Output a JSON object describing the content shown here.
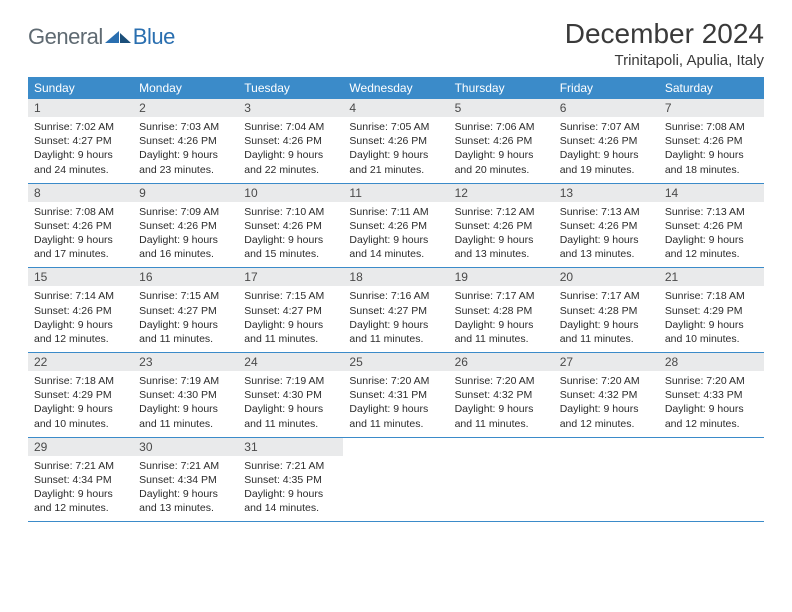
{
  "logo": {
    "general": "General",
    "blue": "Blue"
  },
  "title": "December 2024",
  "location": "Trinitapoli, Apulia, Italy",
  "colors": {
    "header_bg": "#3b8bc9",
    "header_text": "#ffffff",
    "daynum_bg": "#e9eaeb",
    "daynum_text": "#4a4a4a",
    "body_text": "#2b2b2b",
    "border": "#3b8bc9",
    "logo_gray": "#5f6a72",
    "logo_blue": "#2a6fb0",
    "title_color": "#3a3a3a"
  },
  "weekdays": [
    "Sunday",
    "Monday",
    "Tuesday",
    "Wednesday",
    "Thursday",
    "Friday",
    "Saturday"
  ],
  "weeks": [
    [
      {
        "num": "1",
        "sunrise": "Sunrise: 7:02 AM",
        "sunset": "Sunset: 4:27 PM",
        "daylight": "Daylight: 9 hours and 24 minutes."
      },
      {
        "num": "2",
        "sunrise": "Sunrise: 7:03 AM",
        "sunset": "Sunset: 4:26 PM",
        "daylight": "Daylight: 9 hours and 23 minutes."
      },
      {
        "num": "3",
        "sunrise": "Sunrise: 7:04 AM",
        "sunset": "Sunset: 4:26 PM",
        "daylight": "Daylight: 9 hours and 22 minutes."
      },
      {
        "num": "4",
        "sunrise": "Sunrise: 7:05 AM",
        "sunset": "Sunset: 4:26 PM",
        "daylight": "Daylight: 9 hours and 21 minutes."
      },
      {
        "num": "5",
        "sunrise": "Sunrise: 7:06 AM",
        "sunset": "Sunset: 4:26 PM",
        "daylight": "Daylight: 9 hours and 20 minutes."
      },
      {
        "num": "6",
        "sunrise": "Sunrise: 7:07 AM",
        "sunset": "Sunset: 4:26 PM",
        "daylight": "Daylight: 9 hours and 19 minutes."
      },
      {
        "num": "7",
        "sunrise": "Sunrise: 7:08 AM",
        "sunset": "Sunset: 4:26 PM",
        "daylight": "Daylight: 9 hours and 18 minutes."
      }
    ],
    [
      {
        "num": "8",
        "sunrise": "Sunrise: 7:08 AM",
        "sunset": "Sunset: 4:26 PM",
        "daylight": "Daylight: 9 hours and 17 minutes."
      },
      {
        "num": "9",
        "sunrise": "Sunrise: 7:09 AM",
        "sunset": "Sunset: 4:26 PM",
        "daylight": "Daylight: 9 hours and 16 minutes."
      },
      {
        "num": "10",
        "sunrise": "Sunrise: 7:10 AM",
        "sunset": "Sunset: 4:26 PM",
        "daylight": "Daylight: 9 hours and 15 minutes."
      },
      {
        "num": "11",
        "sunrise": "Sunrise: 7:11 AM",
        "sunset": "Sunset: 4:26 PM",
        "daylight": "Daylight: 9 hours and 14 minutes."
      },
      {
        "num": "12",
        "sunrise": "Sunrise: 7:12 AM",
        "sunset": "Sunset: 4:26 PM",
        "daylight": "Daylight: 9 hours and 13 minutes."
      },
      {
        "num": "13",
        "sunrise": "Sunrise: 7:13 AM",
        "sunset": "Sunset: 4:26 PM",
        "daylight": "Daylight: 9 hours and 13 minutes."
      },
      {
        "num": "14",
        "sunrise": "Sunrise: 7:13 AM",
        "sunset": "Sunset: 4:26 PM",
        "daylight": "Daylight: 9 hours and 12 minutes."
      }
    ],
    [
      {
        "num": "15",
        "sunrise": "Sunrise: 7:14 AM",
        "sunset": "Sunset: 4:26 PM",
        "daylight": "Daylight: 9 hours and 12 minutes."
      },
      {
        "num": "16",
        "sunrise": "Sunrise: 7:15 AM",
        "sunset": "Sunset: 4:27 PM",
        "daylight": "Daylight: 9 hours and 11 minutes."
      },
      {
        "num": "17",
        "sunrise": "Sunrise: 7:15 AM",
        "sunset": "Sunset: 4:27 PM",
        "daylight": "Daylight: 9 hours and 11 minutes."
      },
      {
        "num": "18",
        "sunrise": "Sunrise: 7:16 AM",
        "sunset": "Sunset: 4:27 PM",
        "daylight": "Daylight: 9 hours and 11 minutes."
      },
      {
        "num": "19",
        "sunrise": "Sunrise: 7:17 AM",
        "sunset": "Sunset: 4:28 PM",
        "daylight": "Daylight: 9 hours and 11 minutes."
      },
      {
        "num": "20",
        "sunrise": "Sunrise: 7:17 AM",
        "sunset": "Sunset: 4:28 PM",
        "daylight": "Daylight: 9 hours and 11 minutes."
      },
      {
        "num": "21",
        "sunrise": "Sunrise: 7:18 AM",
        "sunset": "Sunset: 4:29 PM",
        "daylight": "Daylight: 9 hours and 10 minutes."
      }
    ],
    [
      {
        "num": "22",
        "sunrise": "Sunrise: 7:18 AM",
        "sunset": "Sunset: 4:29 PM",
        "daylight": "Daylight: 9 hours and 10 minutes."
      },
      {
        "num": "23",
        "sunrise": "Sunrise: 7:19 AM",
        "sunset": "Sunset: 4:30 PM",
        "daylight": "Daylight: 9 hours and 11 minutes."
      },
      {
        "num": "24",
        "sunrise": "Sunrise: 7:19 AM",
        "sunset": "Sunset: 4:30 PM",
        "daylight": "Daylight: 9 hours and 11 minutes."
      },
      {
        "num": "25",
        "sunrise": "Sunrise: 7:20 AM",
        "sunset": "Sunset: 4:31 PM",
        "daylight": "Daylight: 9 hours and 11 minutes."
      },
      {
        "num": "26",
        "sunrise": "Sunrise: 7:20 AM",
        "sunset": "Sunset: 4:32 PM",
        "daylight": "Daylight: 9 hours and 11 minutes."
      },
      {
        "num": "27",
        "sunrise": "Sunrise: 7:20 AM",
        "sunset": "Sunset: 4:32 PM",
        "daylight": "Daylight: 9 hours and 12 minutes."
      },
      {
        "num": "28",
        "sunrise": "Sunrise: 7:20 AM",
        "sunset": "Sunset: 4:33 PM",
        "daylight": "Daylight: 9 hours and 12 minutes."
      }
    ],
    [
      {
        "num": "29",
        "sunrise": "Sunrise: 7:21 AM",
        "sunset": "Sunset: 4:34 PM",
        "daylight": "Daylight: 9 hours and 12 minutes."
      },
      {
        "num": "30",
        "sunrise": "Sunrise: 7:21 AM",
        "sunset": "Sunset: 4:34 PM",
        "daylight": "Daylight: 9 hours and 13 minutes."
      },
      {
        "num": "31",
        "sunrise": "Sunrise: 7:21 AM",
        "sunset": "Sunset: 4:35 PM",
        "daylight": "Daylight: 9 hours and 14 minutes."
      },
      null,
      null,
      null,
      null
    ]
  ]
}
